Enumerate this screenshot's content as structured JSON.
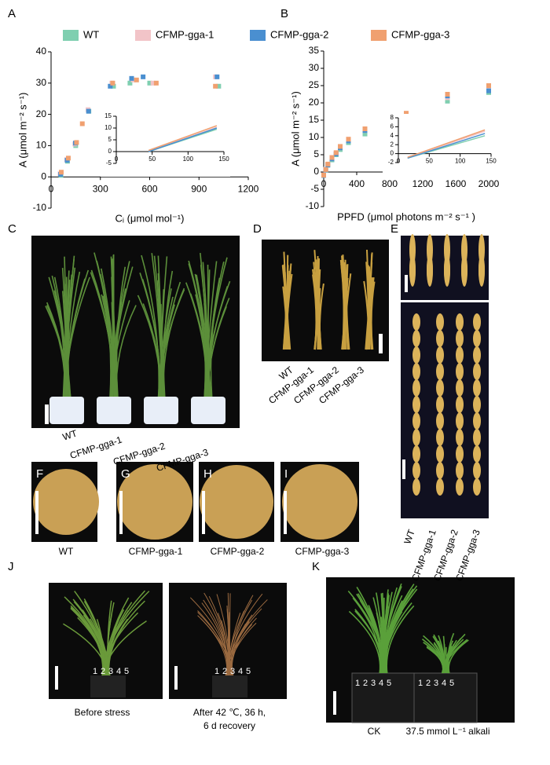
{
  "chart_data": [
    {
      "type": "scatter",
      "xlabel": "Cᵢ (μmol mol⁻¹)",
      "ylabel": "A (μmol m⁻² s⁻¹)",
      "xlim": [
        0,
        1200
      ],
      "ylim": [
        -10,
        40
      ],
      "xticks": [
        0,
        300,
        600,
        900,
        1200
      ],
      "yticks": [
        -10,
        0,
        10,
        20,
        30,
        40
      ],
      "series": [
        {
          "name": "WT",
          "color": "#7fcfb0",
          "x": [
            60,
            100,
            150,
            230,
            380,
            480,
            600,
            1020
          ],
          "values": [
            0.5,
            5,
            10,
            21,
            29,
            30,
            30,
            29
          ]
        },
        {
          "name": "CFMP-gga-1",
          "color": "#f2c4c8",
          "x": [
            55,
            95,
            145,
            225,
            370,
            500,
            620,
            1000
          ],
          "values": [
            1,
            5.5,
            10.5,
            21.5,
            30,
            31,
            30,
            32
          ]
        },
        {
          "name": "CFMP-gga-2",
          "color": "#4a8fd0",
          "x": [
            58,
            98,
            148,
            228,
            360,
            490,
            560,
            1010
          ],
          "values": [
            0.8,
            5.3,
            10.8,
            21,
            29,
            31.5,
            32,
            32
          ]
        },
        {
          "name": "CFMP-gga-3",
          "color": "#f0a070",
          "x": [
            62,
            105,
            155,
            190,
            375,
            520,
            640,
            1000
          ],
          "values": [
            1.5,
            6,
            11,
            17,
            30,
            31,
            30,
            29
          ]
        }
      ]
    },
    {
      "type": "scatter",
      "xlabel": "PPFD (μmol photons m⁻² s⁻¹ )",
      "ylabel": "A (μmol m⁻² s⁻¹)",
      "xlim": [
        0,
        2000
      ],
      "ylim": [
        -10,
        35
      ],
      "xticks": [
        0,
        400,
        800,
        1200,
        1600,
        2000
      ],
      "yticks": [
        -10,
        -5,
        0,
        5,
        10,
        15,
        20,
        25,
        30,
        35
      ],
      "series": [
        {
          "color": "#7fcfb0",
          "x": [
            0,
            25,
            50,
            100,
            150,
            200,
            300,
            500,
            1000,
            1500,
            2000
          ],
          "values": [
            -1,
            0.5,
            2,
            3.5,
            5,
            6.5,
            8.5,
            11,
            15.5,
            20.5,
            23
          ]
        },
        {
          "color": "#f2c4c8",
          "x": [
            0,
            25,
            50,
            100,
            150,
            200,
            300,
            500,
            1000,
            1500,
            2000
          ],
          "values": [
            -0.8,
            0.8,
            2.2,
            4,
            5.5,
            7,
            9,
            12,
            16.5,
            21.5,
            24
          ]
        },
        {
          "color": "#4a8fd0",
          "x": [
            0,
            25,
            50,
            100,
            150,
            200,
            300,
            500,
            1000,
            1500,
            2000
          ],
          "values": [
            -1,
            0.6,
            2,
            3.8,
            5.2,
            7,
            9,
            12,
            16,
            22,
            23.5
          ]
        },
        {
          "color": "#f0a070",
          "x": [
            0,
            25,
            50,
            100,
            150,
            200,
            300,
            500,
            1000,
            1500,
            2000
          ],
          "values": [
            -0.9,
            0.7,
            2.3,
            4.2,
            5.6,
            7.4,
            9.5,
            12.5,
            17,
            22.5,
            25
          ]
        }
      ]
    },
    {
      "type": "line",
      "xlim": [
        0,
        150
      ],
      "ylim": [
        -5,
        15
      ],
      "xticks": [
        0,
        50,
        100,
        150
      ],
      "yticks": [
        -5,
        0,
        5,
        10,
        15
      ],
      "series": [
        {
          "color": "#7fcfb0",
          "x": [
            45,
            140
          ],
          "values": [
            0,
            9.5
          ]
        },
        {
          "color": "#f2c4c8",
          "x": [
            45,
            140
          ],
          "values": [
            0.2,
            10.3
          ]
        },
        {
          "color": "#4a8fd0",
          "x": [
            45,
            140
          ],
          "values": [
            0,
            10
          ]
        },
        {
          "color": "#f0a070",
          "x": [
            45,
            140
          ],
          "values": [
            0.5,
            11
          ]
        }
      ]
    },
    {
      "type": "line",
      "xlim": [
        0,
        150
      ],
      "ylim": [
        -2,
        8
      ],
      "xticks": [
        0,
        50,
        100,
        150
      ],
      "yticks": [
        -2,
        0,
        2,
        4,
        6,
        8
      ],
      "series": [
        {
          "color": "#7fcfb0",
          "x": [
            15,
            140
          ],
          "values": [
            -1,
            4
          ]
        },
        {
          "color": "#f2c4c8",
          "x": [
            15,
            140
          ],
          "values": [
            -0.9,
            5
          ]
        },
        {
          "color": "#4a8fd0",
          "x": [
            15,
            140
          ],
          "values": [
            -1,
            4.5
          ]
        },
        {
          "color": "#f0a070",
          "x": [
            15,
            140
          ],
          "values": [
            -0.8,
            5.3
          ]
        }
      ]
    }
  ],
  "panels": {
    "letters": [
      "A",
      "B",
      "C",
      "D",
      "E",
      "F",
      "G",
      "H",
      "I",
      "J",
      "K"
    ],
    "genotypes": [
      "WT",
      "CFMP-gga-1",
      "CFMP-gga-2",
      "CFMP-gga-3"
    ],
    "pots": [
      "1",
      "2",
      "3",
      "4",
      "5"
    ],
    "j_labels": [
      "Before stress",
      "After 42 ℃, 36 h,",
      "6 d recovery"
    ],
    "k_labels": [
      "CK",
      "37.5 mmol L⁻¹ alkali"
    ]
  }
}
